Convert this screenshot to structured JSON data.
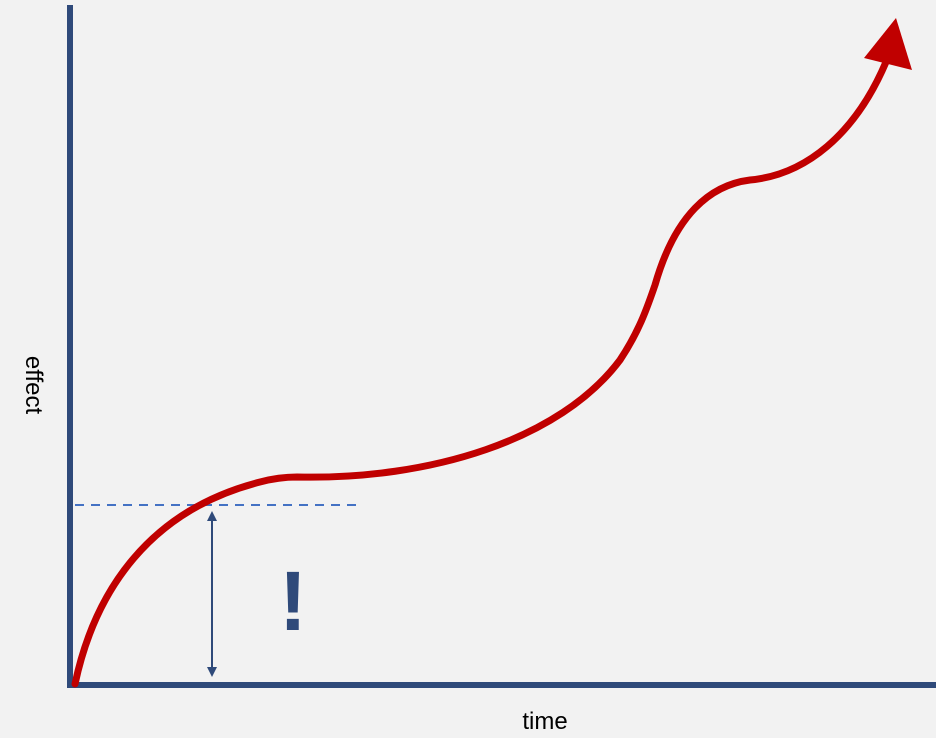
{
  "diagram": {
    "x_axis_label": "time",
    "y_axis_label": "effect",
    "annotation_mark": "!",
    "colors": {
      "background": "#f2f2f2",
      "axis": "#2f4a7a",
      "curve": "#c00000",
      "dashed_line": "#4472c4",
      "arrow": "#2f4a7a",
      "annotation": "#2f4a7a"
    }
  }
}
